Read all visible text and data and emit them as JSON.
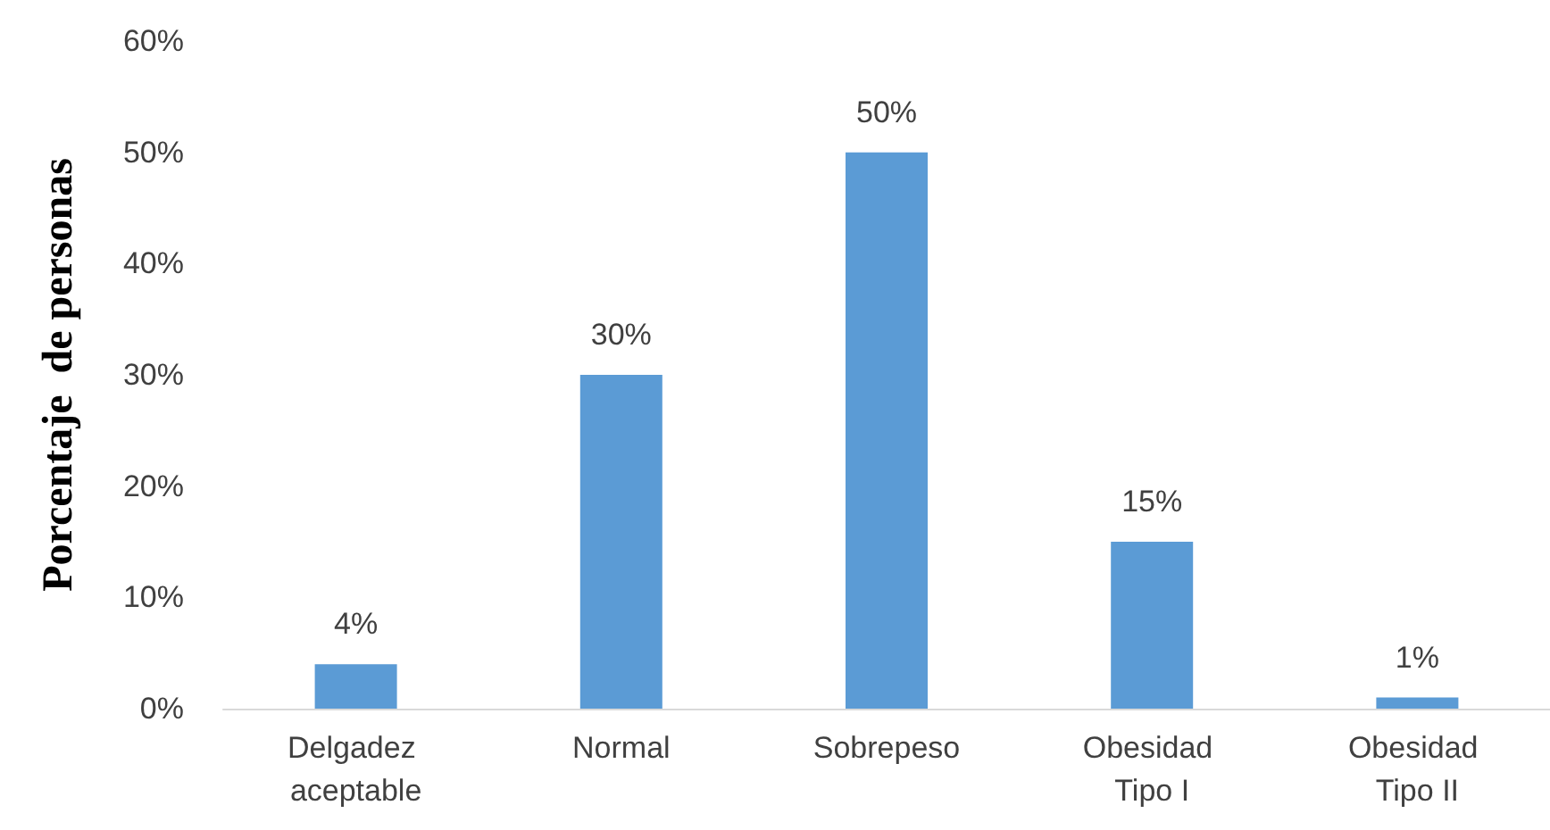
{
  "chart_data": {
    "type": "bar",
    "ylabel": "Porcentaje  de personas",
    "categories": [
      "Delgadez aceptable",
      "Normal",
      "Sobrepeso",
      "Obesidad Tipo I",
      "Obesidad Tipo II"
    ],
    "values": [
      4,
      30,
      50,
      15,
      1
    ],
    "value_labels": [
      "4%",
      "30%",
      "50%",
      "15%",
      "1%"
    ],
    "color": "#5b9bd5",
    "ylim": [
      0,
      60
    ],
    "yticks": [
      {
        "value": 0,
        "label": "0%"
      },
      {
        "value": 10,
        "label": "10%"
      },
      {
        "value": 20,
        "label": "20%"
      },
      {
        "value": 30,
        "label": "30%"
      },
      {
        "value": 40,
        "label": "40%"
      },
      {
        "value": 50,
        "label": "50%"
      },
      {
        "value": 60,
        "label": "60%"
      }
    ],
    "grid": false
  }
}
